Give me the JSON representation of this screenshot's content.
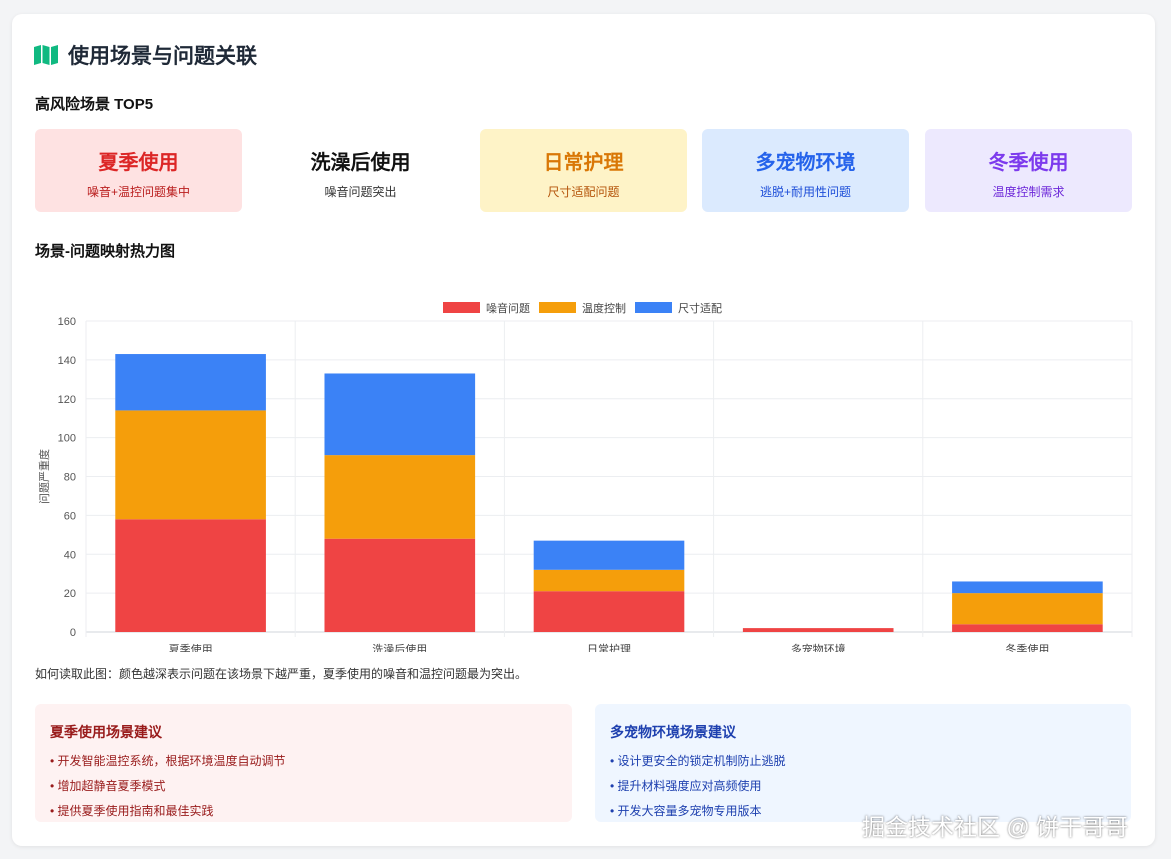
{
  "header": {
    "title": "使用场景与问题关联",
    "icon": "map-icon",
    "icon_color": "#10b981"
  },
  "top5": {
    "heading": "高风险场景 TOP5",
    "items": [
      {
        "name": "夏季使用",
        "desc": "噪音+温控问题集中",
        "bg": "#fee2e2",
        "color": "#dc2626",
        "desc_color": "#b91c1c"
      },
      {
        "name": "洗澡后使用",
        "desc": "噪音问题突出",
        "bg": "#ffffff",
        "color": "#111111",
        "desc_color": "#333333"
      },
      {
        "name": "日常护理",
        "desc": "尺寸适配问题",
        "bg": "#fef3c7",
        "color": "#d97706",
        "desc_color": "#b45309"
      },
      {
        "name": "多宠物环境",
        "desc": "逃脱+耐用性问题",
        "bg": "#dbeafe",
        "color": "#2563eb",
        "desc_color": "#1d4ed8"
      },
      {
        "name": "冬季使用",
        "desc": "温度控制需求",
        "bg": "#ede9fe",
        "color": "#7c3aed",
        "desc_color": "#6d28d9"
      }
    ]
  },
  "heatmap_heading": "场景-问题映射热力图",
  "chart_data": {
    "type": "bar",
    "stacked": true,
    "categories": [
      "夏季使用",
      "洗澡后使用",
      "日常护理",
      "多宠物环境",
      "冬季使用"
    ],
    "series": [
      {
        "name": "噪音问题",
        "color": "#ef4444",
        "values": [
          58,
          48,
          21,
          2,
          4
        ]
      },
      {
        "name": "温度控制",
        "color": "#f59e0b",
        "values": [
          56,
          43,
          11,
          0,
          16
        ]
      },
      {
        "name": "尺寸适配",
        "color": "#3b82f6",
        "values": [
          29,
          42,
          15,
          0,
          6
        ]
      }
    ],
    "ylabel": "问题严重度",
    "ylim": [
      0,
      160
    ],
    "yticks": [
      0,
      20,
      40,
      60,
      80,
      100,
      120,
      140,
      160
    ],
    "grid": true,
    "legend": "top"
  },
  "note": "如何读取此图：颜色越深表示问题在该场景下越严重，夏季使用的噪音和温控问题最为突出。",
  "advice": [
    {
      "title": "夏季使用场景建议",
      "bg": "#fef2f2",
      "color": "#991b1b",
      "items": [
        "开发智能温控系统，根据环境温度自动调节",
        "增加超静音夏季模式",
        "提供夏季使用指南和最佳实践"
      ]
    },
    {
      "title": "多宠物环境场景建议",
      "bg": "#eff6ff",
      "color": "#1e40af",
      "items": [
        "设计更安全的锁定机制防止逃脱",
        "提升材料强度应对高频使用",
        "开发大容量多宠物专用版本"
      ]
    }
  ],
  "watermark": "掘金技术社区 @ 饼干哥哥"
}
